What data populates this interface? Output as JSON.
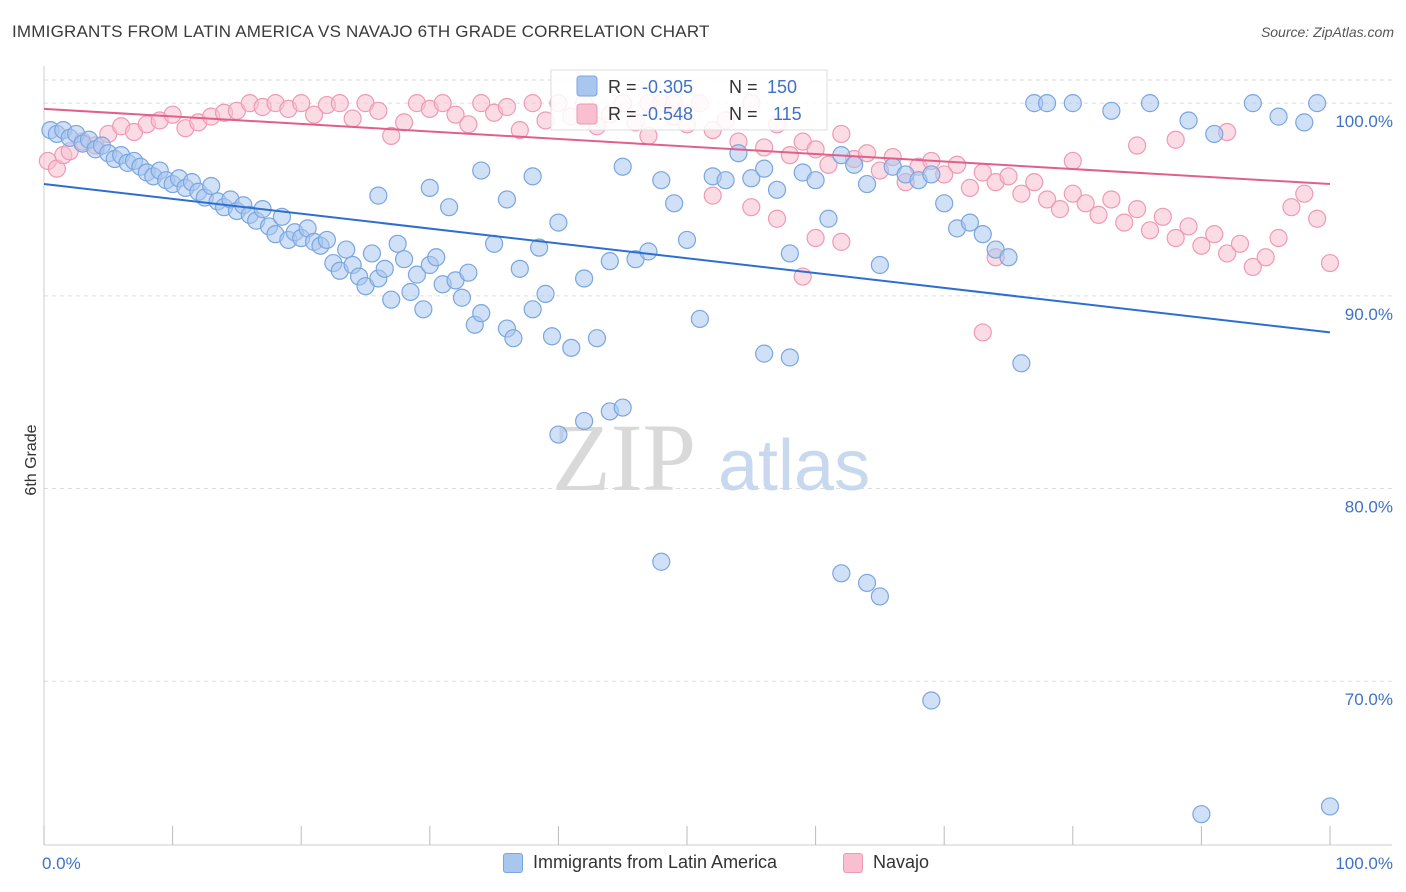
{
  "header": {
    "title": "IMMIGRANTS FROM LATIN AMERICA VS NAVAJO 6TH GRADE CORRELATION CHART",
    "source": "Source: ZipAtlas.com"
  },
  "watermark": {
    "zip": "ZIP",
    "atlas": "atlas"
  },
  "legend_top": {
    "rows": [
      {
        "r_label": "R =",
        "r_value": "-0.305",
        "n_label": "N =",
        "n_value": "150"
      },
      {
        "r_label": "R =",
        "r_value": "-0.548",
        "n_label": "N =",
        "n_value": "115"
      }
    ]
  },
  "legend_bottom": {
    "items": [
      {
        "label": "Immigrants from Latin America"
      },
      {
        "label": "Navajo"
      }
    ]
  },
  "colors": {
    "blue_fill": "#a9c6ef",
    "blue_stroke": "#7aa6e0",
    "blue_line": "#2d6fd0",
    "pink_fill": "#f7bfd0",
    "pink_stroke": "#ee9ab5",
    "pink_line": "#e0608c",
    "grid": "#dddddd",
    "tick_label": "#3f72c6"
  },
  "chart_data": {
    "type": "scatter",
    "title": "IMMIGRANTS FROM LATIN AMERICA VS NAVAJO 6TH GRADE CORRELATION CHART",
    "ylabel": "6th Grade",
    "xlabel": "",
    "x_tick_labels": [
      "0.0%",
      "100.0%"
    ],
    "y_tick_labels": [
      "100.0%",
      "90.0%",
      "80.0%",
      "70.0%"
    ],
    "y_ticks": [
      100,
      90,
      80,
      70
    ],
    "xlim": [
      0,
      100
    ],
    "ylim": [
      61.5,
      101.2
    ],
    "grid": true,
    "legend_position": "top-center",
    "series": [
      {
        "name": "Immigrants from Latin America",
        "R": -0.305,
        "N": 150,
        "trend": [
          [
            0,
            95.8
          ],
          [
            100,
            88.1
          ]
        ],
        "points": [
          [
            0.5,
            98.6
          ],
          [
            1,
            98.4
          ],
          [
            1.5,
            98.6
          ],
          [
            2,
            98.2
          ],
          [
            2.5,
            98.4
          ],
          [
            3,
            97.9
          ],
          [
            3.5,
            98.1
          ],
          [
            4,
            97.6
          ],
          [
            4.5,
            97.8
          ],
          [
            5,
            97.4
          ],
          [
            5.5,
            97.1
          ],
          [
            6,
            97.3
          ],
          [
            6.5,
            96.9
          ],
          [
            7,
            97.0
          ],
          [
            7.5,
            96.7
          ],
          [
            8,
            96.4
          ],
          [
            8.5,
            96.2
          ],
          [
            9,
            96.5
          ],
          [
            9.5,
            96.0
          ],
          [
            10,
            95.8
          ],
          [
            10.5,
            96.1
          ],
          [
            11,
            95.6
          ],
          [
            11.5,
            95.9
          ],
          [
            12,
            95.4
          ],
          [
            12.5,
            95.1
          ],
          [
            13,
            95.7
          ],
          [
            13.5,
            94.9
          ],
          [
            14,
            94.6
          ],
          [
            14.5,
            95.0
          ],
          [
            15,
            94.4
          ],
          [
            15.5,
            94.7
          ],
          [
            16,
            94.2
          ],
          [
            16.5,
            93.9
          ],
          [
            17,
            94.5
          ],
          [
            17.5,
            93.6
          ],
          [
            18,
            93.2
          ],
          [
            18.5,
            94.1
          ],
          [
            19,
            92.9
          ],
          [
            19.5,
            93.3
          ],
          [
            20,
            93.0
          ],
          [
            20.5,
            93.5
          ],
          [
            21,
            92.8
          ],
          [
            21.5,
            92.6
          ],
          [
            22,
            92.9
          ],
          [
            22.5,
            91.7
          ],
          [
            23,
            91.3
          ],
          [
            23.5,
            92.4
          ],
          [
            24,
            91.6
          ],
          [
            24.5,
            91.0
          ],
          [
            25,
            90.5
          ],
          [
            25.5,
            92.2
          ],
          [
            26,
            90.9
          ],
          [
            26.5,
            91.4
          ],
          [
            27,
            89.8
          ],
          [
            27.5,
            92.7
          ],
          [
            28,
            91.9
          ],
          [
            28.5,
            90.2
          ],
          [
            29,
            91.1
          ],
          [
            29.5,
            89.3
          ],
          [
            30,
            91.6
          ],
          [
            30.5,
            92.0
          ],
          [
            31,
            90.6
          ],
          [
            31.5,
            94.6
          ],
          [
            32,
            90.8
          ],
          [
            32.5,
            89.9
          ],
          [
            33,
            91.2
          ],
          [
            33.5,
            88.5
          ],
          [
            34,
            89.1
          ],
          [
            35,
            92.7
          ],
          [
            36,
            88.3
          ],
          [
            36.5,
            87.8
          ],
          [
            37,
            91.4
          ],
          [
            38,
            89.3
          ],
          [
            38.5,
            92.5
          ],
          [
            39,
            90.1
          ],
          [
            39.5,
            87.9
          ],
          [
            40,
            93.8
          ],
          [
            41,
            87.3
          ],
          [
            42,
            90.9
          ],
          [
            43,
            87.8
          ],
          [
            44,
            91.8
          ],
          [
            45,
            96.7
          ],
          [
            46,
            91.9
          ],
          [
            47,
            92.3
          ],
          [
            48,
            96.0
          ],
          [
            49,
            94.8
          ],
          [
            50,
            92.9
          ],
          [
            51,
            88.8
          ],
          [
            52,
            96.2
          ],
          [
            53,
            96.0
          ],
          [
            54,
            97.4
          ],
          [
            55,
            96.1
          ],
          [
            56,
            96.6
          ],
          [
            57,
            95.5
          ],
          [
            58,
            92.2
          ],
          [
            59,
            96.4
          ],
          [
            60,
            96.0
          ],
          [
            61,
            94.0
          ],
          [
            62,
            97.3
          ],
          [
            63,
            96.8
          ],
          [
            64,
            95.8
          ],
          [
            65,
            91.6
          ],
          [
            66,
            96.7
          ],
          [
            67,
            96.3
          ],
          [
            68,
            96.0
          ],
          [
            69,
            96.3
          ],
          [
            70,
            94.8
          ],
          [
            71,
            93.5
          ],
          [
            72,
            93.8
          ],
          [
            73,
            93.2
          ],
          [
            74,
            92.4
          ],
          [
            75,
            92.0
          ],
          [
            76,
            86.5
          ],
          [
            77,
            100.0
          ],
          [
            78,
            100.0
          ],
          [
            80,
            100.0
          ],
          [
            83,
            99.6
          ],
          [
            86,
            100.0
          ],
          [
            89,
            99.1
          ],
          [
            91,
            98.4
          ],
          [
            94,
            100.0
          ],
          [
            96,
            99.3
          ],
          [
            98,
            99.0
          ],
          [
            99,
            100.0
          ],
          [
            100,
            63.5
          ],
          [
            90,
            63.1
          ],
          [
            69,
            69.0
          ],
          [
            65,
            74.4
          ],
          [
            64,
            75.1
          ],
          [
            62,
            75.6
          ],
          [
            48,
            76.2
          ],
          [
            40,
            82.8
          ],
          [
            42,
            83.5
          ],
          [
            44,
            84.0
          ],
          [
            45,
            84.2
          ],
          [
            58,
            86.8
          ],
          [
            56,
            87.0
          ],
          [
            30,
            95.6
          ],
          [
            26,
            95.2
          ],
          [
            34,
            96.5
          ],
          [
            38,
            96.2
          ],
          [
            36,
            95.0
          ]
        ]
      },
      {
        "name": "Navajo",
        "R": -0.548,
        "N": 115,
        "trend": [
          [
            0,
            99.7
          ],
          [
            100,
            95.8
          ]
        ],
        "points": [
          [
            0.3,
            97.0
          ],
          [
            1,
            96.6
          ],
          [
            1.5,
            97.3
          ],
          [
            2,
            97.5
          ],
          [
            3,
            98.0
          ],
          [
            4,
            97.8
          ],
          [
            5,
            98.4
          ],
          [
            6,
            98.8
          ],
          [
            7,
            98.5
          ],
          [
            8,
            98.9
          ],
          [
            9,
            99.1
          ],
          [
            10,
            99.4
          ],
          [
            11,
            98.7
          ],
          [
            12,
            99.0
          ],
          [
            13,
            99.3
          ],
          [
            14,
            99.5
          ],
          [
            15,
            99.6
          ],
          [
            16,
            100.0
          ],
          [
            17,
            99.8
          ],
          [
            18,
            100.0
          ],
          [
            19,
            99.7
          ],
          [
            20,
            100.0
          ],
          [
            21,
            99.4
          ],
          [
            22,
            99.9
          ],
          [
            23,
            100.0
          ],
          [
            24,
            99.2
          ],
          [
            25,
            100.0
          ],
          [
            26,
            99.6
          ],
          [
            27,
            98.3
          ],
          [
            28,
            99.0
          ],
          [
            29,
            100.0
          ],
          [
            30,
            99.7
          ],
          [
            31,
            100.0
          ],
          [
            32,
            99.4
          ],
          [
            33,
            98.9
          ],
          [
            34,
            100.0
          ],
          [
            35,
            99.5
          ],
          [
            36,
            99.8
          ],
          [
            37,
            98.6
          ],
          [
            38,
            100.0
          ],
          [
            39,
            99.1
          ],
          [
            40,
            100.0
          ],
          [
            41,
            99.3
          ],
          [
            42,
            100.0
          ],
          [
            43,
            98.8
          ],
          [
            44,
            99.4
          ],
          [
            45,
            100.0
          ],
          [
            46,
            99.0
          ],
          [
            47,
            98.3
          ],
          [
            48,
            100.0
          ],
          [
            49,
            99.3
          ],
          [
            50,
            98.9
          ],
          [
            51,
            100.0
          ],
          [
            52,
            98.6
          ],
          [
            53,
            99.1
          ],
          [
            54,
            98.0
          ],
          [
            55,
            100.0
          ],
          [
            56,
            97.7
          ],
          [
            57,
            98.9
          ],
          [
            58,
            97.3
          ],
          [
            59,
            98.0
          ],
          [
            60,
            97.6
          ],
          [
            61,
            96.8
          ],
          [
            62,
            98.4
          ],
          [
            63,
            97.1
          ],
          [
            64,
            97.4
          ],
          [
            65,
            96.5
          ],
          [
            66,
            97.2
          ],
          [
            67,
            95.9
          ],
          [
            68,
            96.7
          ],
          [
            69,
            97.0
          ],
          [
            70,
            96.3
          ],
          [
            71,
            96.8
          ],
          [
            72,
            95.6
          ],
          [
            73,
            96.4
          ],
          [
            74,
            95.9
          ],
          [
            75,
            96.2
          ],
          [
            76,
            95.3
          ],
          [
            77,
            95.9
          ],
          [
            78,
            95.0
          ],
          [
            79,
            94.5
          ],
          [
            80,
            95.3
          ],
          [
            81,
            94.8
          ],
          [
            82,
            94.2
          ],
          [
            83,
            95.0
          ],
          [
            84,
            93.8
          ],
          [
            85,
            94.5
          ],
          [
            86,
            93.4
          ],
          [
            87,
            94.1
          ],
          [
            88,
            93.0
          ],
          [
            89,
            93.6
          ],
          [
            90,
            92.6
          ],
          [
            91,
            93.2
          ],
          [
            92,
            92.2
          ],
          [
            93,
            92.7
          ],
          [
            94,
            91.5
          ],
          [
            95,
            92.0
          ],
          [
            96,
            93.0
          ],
          [
            97,
            94.6
          ],
          [
            98,
            95.3
          ],
          [
            99,
            94.0
          ],
          [
            100,
            91.7
          ],
          [
            74,
            92.0
          ],
          [
            73,
            88.1
          ],
          [
            60,
            93.0
          ],
          [
            62,
            92.8
          ],
          [
            59,
            91.0
          ],
          [
            52,
            95.2
          ],
          [
            55,
            94.6
          ],
          [
            57,
            94.0
          ],
          [
            47,
            100.0
          ],
          [
            49,
            100.0
          ],
          [
            80,
            97.0
          ],
          [
            85,
            97.8
          ],
          [
            88,
            98.1
          ],
          [
            92,
            98.5
          ]
        ]
      }
    ]
  }
}
